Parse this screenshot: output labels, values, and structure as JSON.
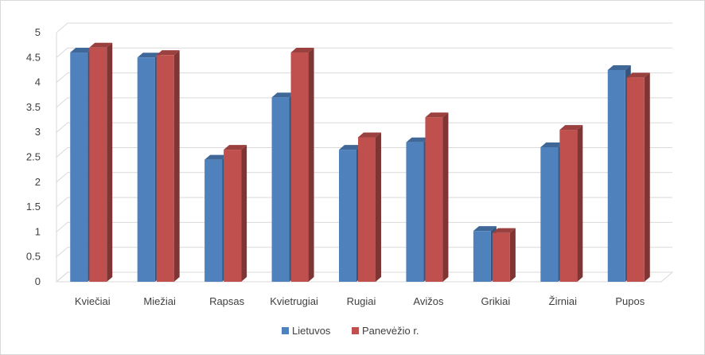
{
  "chart_data": {
    "type": "bar",
    "categories": [
      "Kviečiai",
      "Miežiai",
      "Rapsas",
      "Kvietrugiai",
      "Rugiai",
      "Avižos",
      "Grikiai",
      "Žirniai",
      "Pupos"
    ],
    "series": [
      {
        "name": "Lietuvos",
        "color": "#4f81bd",
        "values": [
          4.6,
          4.5,
          2.45,
          3.7,
          2.65,
          2.8,
          1.02,
          2.7,
          4.25
        ]
      },
      {
        "name": "Panevėžio r.",
        "color": "#c0504d",
        "values": [
          4.7,
          4.55,
          2.65,
          4.6,
          2.9,
          3.3,
          0.98,
          3.05,
          4.1
        ]
      }
    ],
    "ylim": [
      0,
      5
    ],
    "yticks": [
      "0",
      "0.5",
      "1",
      "1.5",
      "2",
      "2.5",
      "3",
      "3.5",
      "4",
      "4.5",
      "5"
    ],
    "grid": true,
    "legend_position": "bottom",
    "style": "3d-clustered-column"
  }
}
